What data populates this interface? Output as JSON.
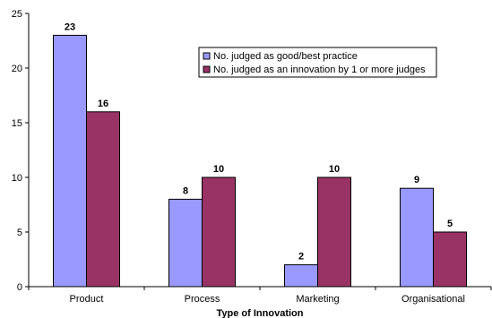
{
  "chart_data": {
    "type": "bar",
    "title": "",
    "xlabel": "Type of Innovation",
    "ylabel": "",
    "ylim": [
      0,
      25
    ],
    "yticks": [
      0,
      5,
      10,
      15,
      20,
      25
    ],
    "categories": [
      "Product",
      "Process",
      "Marketing",
      "Organisational"
    ],
    "series": [
      {
        "name": "No. judged as good/best practice",
        "values": [
          23,
          8,
          2,
          9
        ],
        "color": "#9999ff"
      },
      {
        "name": "No. judged as an innovation by 1 or more judges",
        "values": [
          16,
          10,
          10,
          5
        ],
        "color": "#993366"
      }
    ],
    "grid": false,
    "legend_position": "top-right"
  }
}
